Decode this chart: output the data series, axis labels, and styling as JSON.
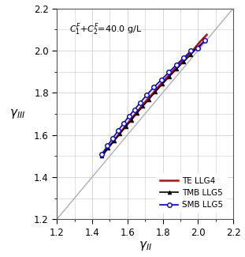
{
  "xlabel": "$\\gamma_{II}$",
  "ylabel": "$\\gamma_{III}$",
  "annotation": "$C_1^F$+$C_2^F$=40.0 g/L",
  "xlim": [
    1.2,
    2.2
  ],
  "ylim": [
    1.2,
    2.2
  ],
  "xticks": [
    1.2,
    1.4,
    1.6,
    1.8,
    2.0,
    2.2
  ],
  "yticks": [
    1.2,
    1.4,
    1.6,
    1.8,
    2.0,
    2.2
  ],
  "diagonal": [
    1.2,
    2.2
  ],
  "te_llg4_x": [
    1.455,
    1.49,
    1.525,
    1.56,
    1.595,
    1.63,
    1.665,
    1.7,
    1.74,
    1.775,
    1.815,
    1.855,
    1.895,
    1.935,
    1.975,
    2.01,
    2.05
  ],
  "te_llg4_y": [
    1.5,
    1.538,
    1.575,
    1.612,
    1.648,
    1.685,
    1.72,
    1.756,
    1.793,
    1.828,
    1.865,
    1.9,
    1.937,
    1.972,
    2.005,
    2.04,
    2.075
  ],
  "tmb_llg5_x": [
    1.455,
    1.49,
    1.525,
    1.558,
    1.59,
    1.622,
    1.654,
    1.688,
    1.722,
    1.758,
    1.798,
    1.838,
    1.878,
    1.918,
    1.958,
    1.998,
    2.04
  ],
  "tmb_llg5_y": [
    1.5,
    1.537,
    1.572,
    1.606,
    1.638,
    1.67,
    1.703,
    1.736,
    1.769,
    1.804,
    1.841,
    1.877,
    1.912,
    1.947,
    1.98,
    2.015,
    2.048
  ],
  "smb_llg5_x": [
    1.455,
    1.487,
    1.517,
    1.547,
    1.577,
    1.608,
    1.64,
    1.674,
    1.71,
    1.75,
    1.793,
    1.835,
    1.877,
    1.92,
    1.96,
    2.0,
    2.04
  ],
  "smb_llg5_y": [
    1.51,
    1.548,
    1.585,
    1.62,
    1.654,
    1.688,
    1.72,
    1.754,
    1.79,
    1.826,
    1.862,
    1.897,
    1.932,
    1.966,
    1.999,
    2.01,
    2.048
  ],
  "te_color": "#cc0000",
  "tmb_color": "#000000",
  "smb_color": "#0000cc",
  "diagonal_color": "#b0b0b0",
  "bg_color": "#ffffff",
  "grid_color": "#c8c8c8",
  "legend_labels": [
    "TE LLG4",
    "TMB LLG5",
    "SMB LLG5"
  ]
}
